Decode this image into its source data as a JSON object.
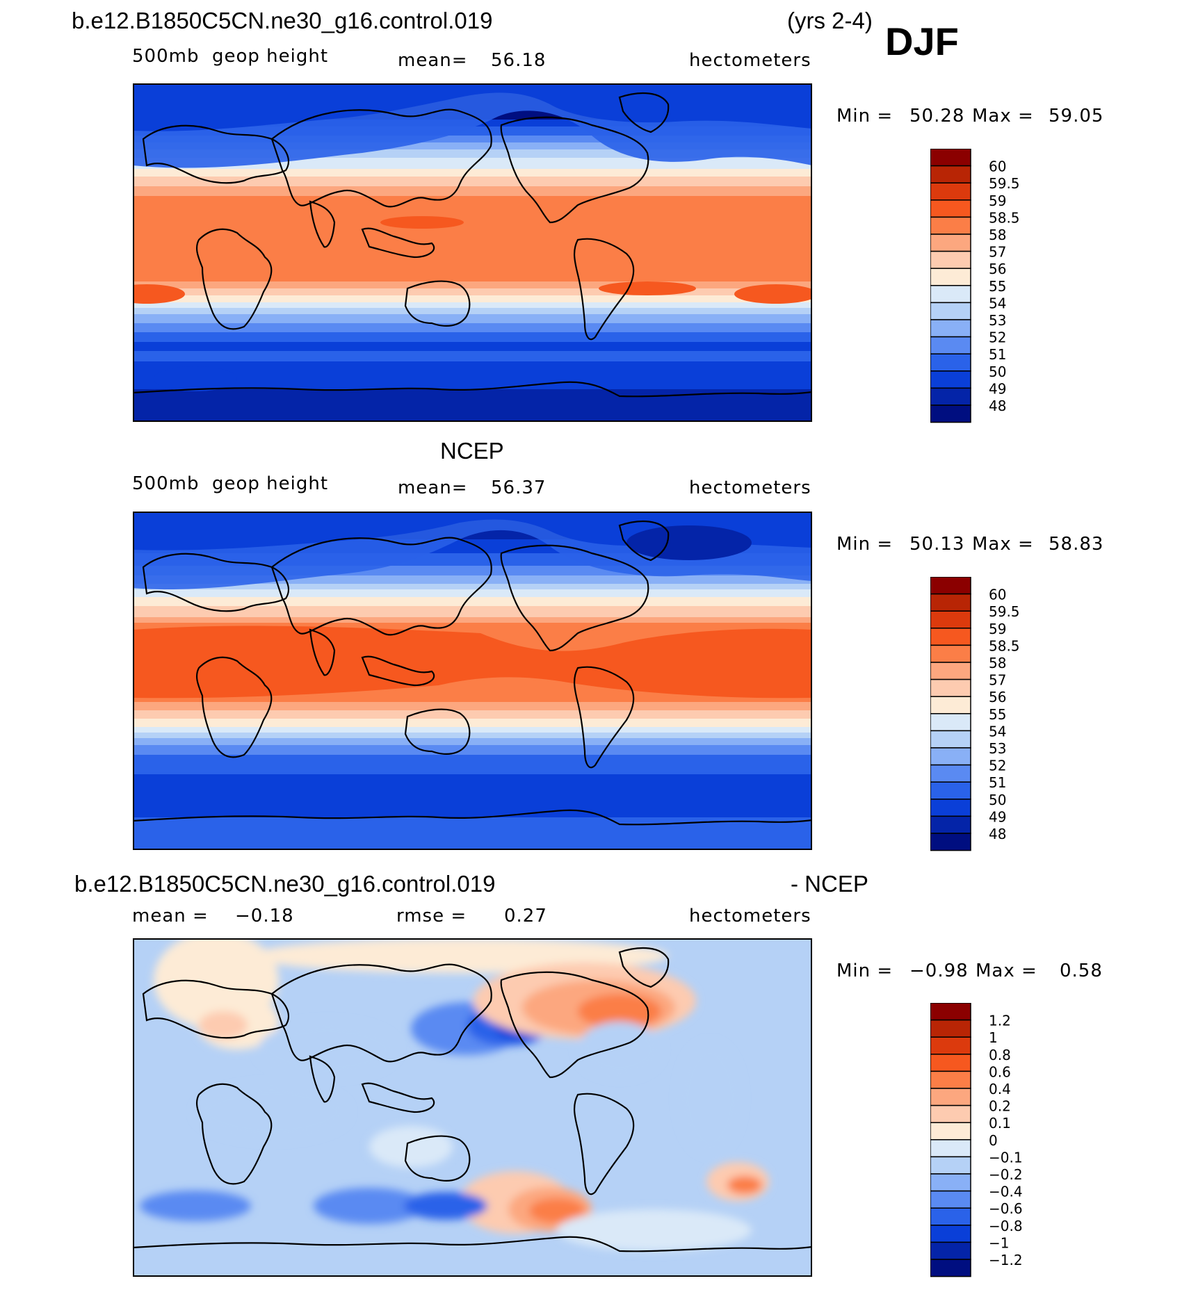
{
  "page": {
    "season": "DJF",
    "years": "(yrs 2-4)"
  },
  "chart_data": [
    {
      "type": "heatmap",
      "id": "model",
      "title": "b.e12.B1850C5CN.ne30_g16.control.019",
      "variable": "500mb  geop height",
      "stat1_label": "mean=",
      "stat1_value": "56.18",
      "stat2_label": "",
      "stat2_value": "",
      "units": "hectometers",
      "min_label": "Min =",
      "min_value": "50.28",
      "max_label": "Max =",
      "max_value": "59.05",
      "x": "longitude",
      "y": "latitude",
      "xlim": [
        0,
        360
      ],
      "ylim": [
        -90,
        90
      ],
      "levels": [
        "60",
        "59.5",
        "59",
        "58.5",
        "58",
        "57",
        "56",
        "55",
        "54",
        "53",
        "52",
        "51",
        "50",
        "49",
        "48"
      ],
      "colors": [
        "#8b0000",
        "#b82505",
        "#dc3a0d",
        "#f6581f",
        "#fb7e47",
        "#fca77f",
        "#fdcbb0",
        "#fdebd6",
        "#dae9f8",
        "#b5d1f6",
        "#89b0f6",
        "#5a8af2",
        "#2a62e9",
        "#0a3fd8",
        "#0424a8",
        "#000e80"
      ]
    },
    {
      "type": "heatmap",
      "id": "obs",
      "title": "NCEP",
      "variable": "500mb  geop height",
      "stat1_label": "mean=",
      "stat1_value": "56.37",
      "stat2_label": "",
      "stat2_value": "",
      "units": "hectometers",
      "min_label": "Min =",
      "min_value": "50.13",
      "max_label": "Max =",
      "max_value": "58.83",
      "x": "longitude",
      "y": "latitude",
      "xlim": [
        0,
        360
      ],
      "ylim": [
        -90,
        90
      ],
      "levels": [
        "60",
        "59.5",
        "59",
        "58.5",
        "58",
        "57",
        "56",
        "55",
        "54",
        "53",
        "52",
        "51",
        "50",
        "49",
        "48"
      ],
      "colors": [
        "#8b0000",
        "#b82505",
        "#dc3a0d",
        "#f6581f",
        "#fb7e47",
        "#fca77f",
        "#fdcbb0",
        "#fdebd6",
        "#dae9f8",
        "#b5d1f6",
        "#89b0f6",
        "#5a8af2",
        "#2a62e9",
        "#0a3fd8",
        "#0424a8",
        "#000e80"
      ]
    },
    {
      "type": "heatmap",
      "id": "diff",
      "title": "b.e12.B1850C5CN.ne30_g16.control.019",
      "title_right": "- NCEP",
      "variable": "",
      "stat1_label": "mean =",
      "stat1_value": "−0.18",
      "stat2_label": "rmse =",
      "stat2_value": "0.27",
      "units": "hectometers",
      "min_label": "Min =",
      "min_value": "−0.98",
      "max_label": "Max =",
      "max_value": "0.58",
      "x": "longitude",
      "y": "latitude",
      "xlim": [
        0,
        360
      ],
      "ylim": [
        -90,
        90
      ],
      "levels": [
        "1.2",
        "1",
        "0.8",
        "0.6",
        "0.4",
        "0.2",
        "0.1",
        "0",
        "−0.1",
        "−0.2",
        "−0.4",
        "−0.6",
        "−0.8",
        "−1",
        "−1.2"
      ],
      "colors": [
        "#8b0000",
        "#b82505",
        "#dc3a0d",
        "#f6581f",
        "#fb7e47",
        "#fca77f",
        "#fdcbb0",
        "#fdebd6",
        "#dae9f8",
        "#b5d1f6",
        "#89b0f6",
        "#5a8af2",
        "#2a62e9",
        "#0a3fd8",
        "#0424a8",
        "#000e80"
      ]
    }
  ]
}
